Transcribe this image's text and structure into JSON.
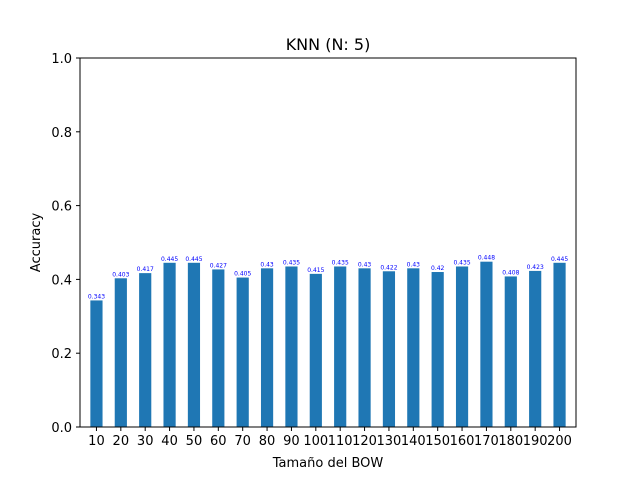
{
  "chart_data": {
    "type": "bar",
    "title": "KNN (N: 5)",
    "xlabel": "Tamaño del BOW",
    "ylabel": "Accuracy",
    "categories": [
      "10",
      "20",
      "30",
      "40",
      "50",
      "60",
      "70",
      "80",
      "90",
      "100",
      "110",
      "120",
      "130",
      "140",
      "150",
      "160",
      "170",
      "180",
      "190",
      "200"
    ],
    "values": [
      0.343,
      0.403,
      0.417,
      0.445,
      0.445,
      0.427,
      0.405,
      0.43,
      0.435,
      0.415,
      0.435,
      0.43,
      0.422,
      0.43,
      0.42,
      0.435,
      0.448,
      0.408,
      0.423,
      0.445
    ],
    "data_labels": [
      "0.343",
      "0.403",
      "0.417",
      "0.445",
      "0.445",
      "0.427",
      "0.405",
      "0.43",
      "0.435",
      "0.415",
      "0.435",
      "0.43",
      "0.422",
      "0.43",
      "0.42",
      "0.435",
      "0.448",
      "0.408",
      "0.423",
      "0.445"
    ],
    "ylim": [
      0,
      1.0
    ],
    "yticks": [
      0.0,
      0.2,
      0.4,
      0.6,
      0.8,
      1.0
    ],
    "ytick_labels": [
      "0.0",
      "0.2",
      "0.4",
      "0.6",
      "0.8",
      "1.0"
    ],
    "bar_color": "#1f77b4",
    "label_color": "#0000ff",
    "grid": false,
    "legend": "none"
  }
}
